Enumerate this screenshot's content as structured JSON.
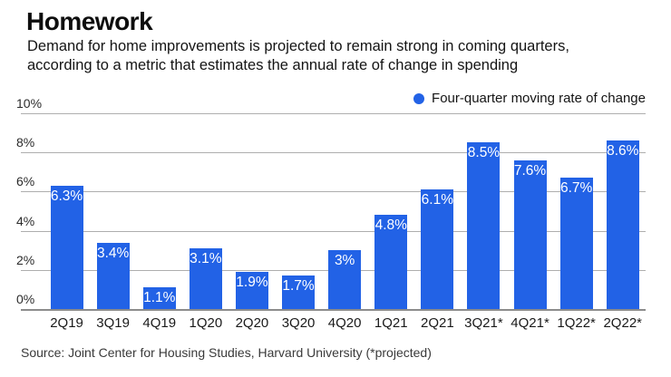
{
  "header": {
    "title": "Homework",
    "subtitle_line1": "Demand for home improvements is projected to remain strong in coming quarters,",
    "subtitle_line2": "according to a metric that estimates the annual rate of change in spending"
  },
  "legend": {
    "label": "Four-quarter moving rate of change",
    "marker_color": "#2262e6"
  },
  "chart_data": {
    "type": "bar",
    "title": "Homework",
    "categories": [
      "2Q19",
      "3Q19",
      "4Q19",
      "1Q20",
      "2Q20",
      "3Q20",
      "4Q20",
      "1Q21",
      "2Q21",
      "3Q21*",
      "4Q21*",
      "1Q22*",
      "2Q22*"
    ],
    "values": [
      6.3,
      3.4,
      1.1,
      3.1,
      1.9,
      1.7,
      3.0,
      4.8,
      6.1,
      8.5,
      7.6,
      6.7,
      8.6
    ],
    "value_labels": [
      "6.3%",
      "3.4%",
      "1.1%",
      "3.1%",
      "1.9%",
      "1.7%",
      "3%",
      "4.8%",
      "6.1%",
      "8.5%",
      "7.6%",
      "6.7%",
      "8.6%"
    ],
    "series_name": "Four-quarter moving rate of change",
    "xlabel": "",
    "ylabel": "",
    "ylim": [
      0,
      10
    ],
    "yticks": [
      0,
      2,
      4,
      6,
      8,
      10
    ],
    "ytick_labels": [
      "0%",
      "2%",
      "4%",
      "6%",
      "8%",
      "10%"
    ],
    "grid": true,
    "legend_position": "top-right",
    "bar_color": "#2262e6",
    "bar_value_label_color": "#ffffff",
    "annotation_note": "(*projected)"
  },
  "footer": {
    "source": "Source: Joint Center for Housing Studies, Harvard University (*projected)"
  }
}
